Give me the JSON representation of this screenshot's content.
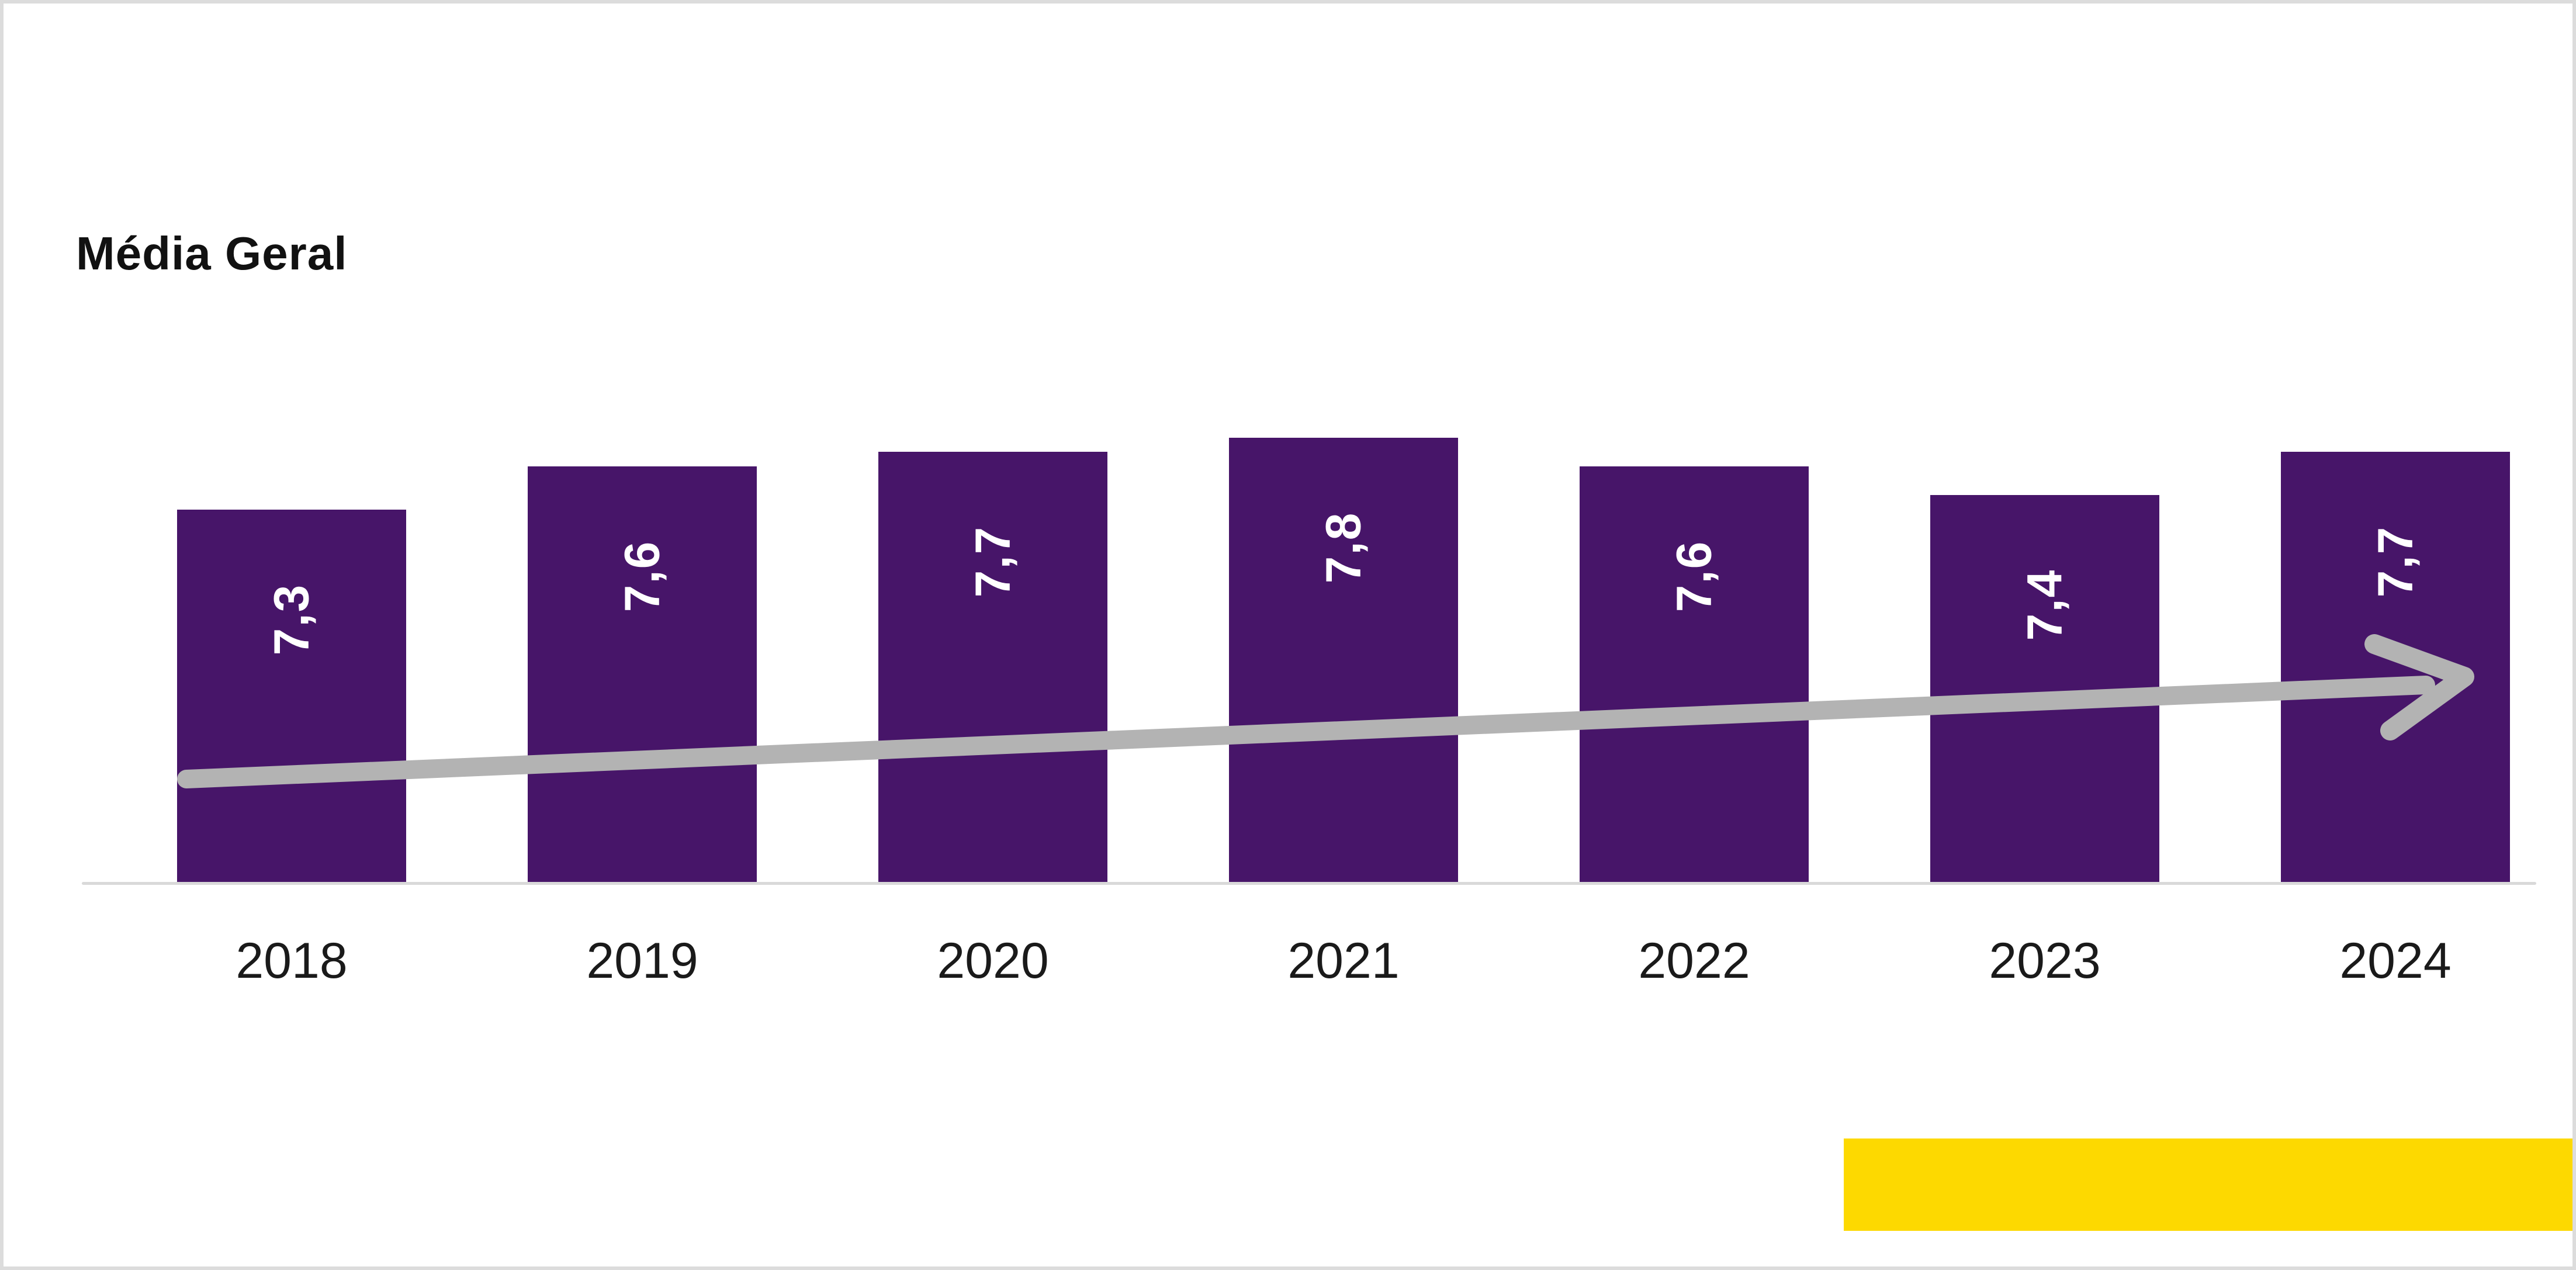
{
  "title": "Média Geral",
  "chart_data": {
    "type": "bar",
    "title": "Média Geral",
    "categories": [
      "2018",
      "2019",
      "2020",
      "2021",
      "2022",
      "2023",
      "2024"
    ],
    "values": [
      7.3,
      7.6,
      7.7,
      7.8,
      7.6,
      7.4,
      7.7
    ],
    "value_labels": [
      "7,3",
      "7,6",
      "7,7",
      "7,8",
      "7,6",
      "7,4",
      "7,7"
    ],
    "xlabel": "",
    "ylabel": "",
    "ylim": [
      4.7,
      8.2
    ],
    "grid": false,
    "legend": "none",
    "value_label_position": "inside-top-rotated-90",
    "trend_annotation": "upward-arrow-left-to-right"
  },
  "colors": {
    "bar": "#471569",
    "bar_value_text": "#ffffff",
    "category_text": "#1a1a1a",
    "title_text": "#111111",
    "axis_line": "#d9d9d9",
    "trend_arrow": "#b3b3b3",
    "accent_bar": "#fdd900",
    "canvas_border": "#dcdcdc",
    "background": "#ffffff"
  }
}
